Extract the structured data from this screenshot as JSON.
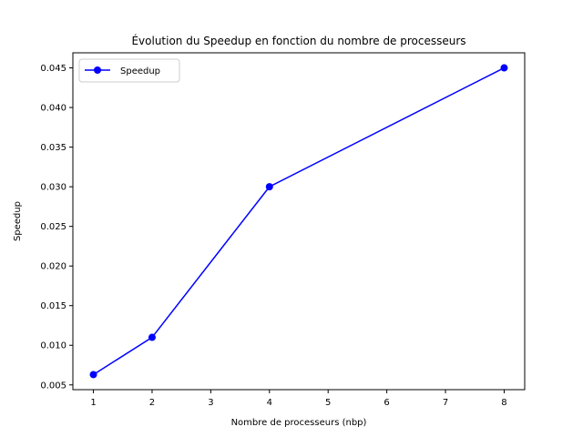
{
  "chart_data": {
    "type": "line",
    "title": "Évolution du Speedup en fonction du nombre de processeurs",
    "xlabel": "Nombre de processeurs (nbp)",
    "ylabel": "Speedup",
    "x": [
      1,
      2,
      4,
      8
    ],
    "series": [
      {
        "name": "Speedup",
        "values": [
          0.0063,
          0.011,
          0.03,
          0.045
        ],
        "color": "#0000ff",
        "marker": "circle"
      }
    ],
    "xlim": [
      0.65,
      8.35
    ],
    "ylim": [
      0.0044,
      0.0469
    ],
    "xticks": [
      1,
      2,
      3,
      4,
      5,
      6,
      7,
      8
    ],
    "xtick_labels": [
      "1",
      "2",
      "3",
      "4",
      "5",
      "6",
      "7",
      "8"
    ],
    "yticks": [
      0.005,
      0.01,
      0.015,
      0.02,
      0.025,
      0.03,
      0.035,
      0.04,
      0.045
    ],
    "ytick_labels": [
      "0.005",
      "0.010",
      "0.015",
      "0.020",
      "0.025",
      "0.030",
      "0.035",
      "0.040",
      "0.045"
    ],
    "grid": false,
    "legend_position": "upper-left"
  }
}
